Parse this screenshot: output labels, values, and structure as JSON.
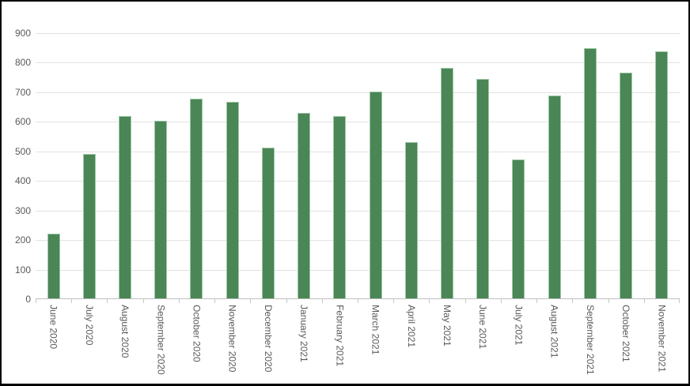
{
  "chart_data": {
    "type": "bar",
    "title": "",
    "xlabel": "",
    "ylabel": "",
    "categories": [
      "June 2020",
      "July 2020",
      "August 2020",
      "September 2020",
      "October 2020",
      "November 2020",
      "December 2020",
      "January 2021",
      "February 2021",
      "March 2021",
      "April 2021",
      "May 2021",
      "June 2021",
      "July 2021",
      "August 2021",
      "September 2021",
      "October 2021",
      "November 2021"
    ],
    "values": [
      220,
      490,
      617,
      600,
      675,
      665,
      509,
      628,
      616,
      700,
      529,
      781,
      742,
      471,
      687,
      846,
      765,
      836
    ],
    "ylim": [
      0,
      900
    ],
    "ytick_step": 100,
    "y_tick_labels": [
      "0",
      "100",
      "200",
      "300",
      "400",
      "500",
      "600",
      "700",
      "800",
      "900"
    ],
    "grid": true,
    "legend": false,
    "colors": {
      "bar_fill": "#4a8656",
      "bar_border": "#a0c8a7",
      "gridline": "#e2e2e2",
      "axis_line": "#bfbfbf",
      "tick": "#c9c9c9",
      "label_text": "#595959",
      "outer_border": "#000000",
      "background": "#ffffff"
    }
  }
}
